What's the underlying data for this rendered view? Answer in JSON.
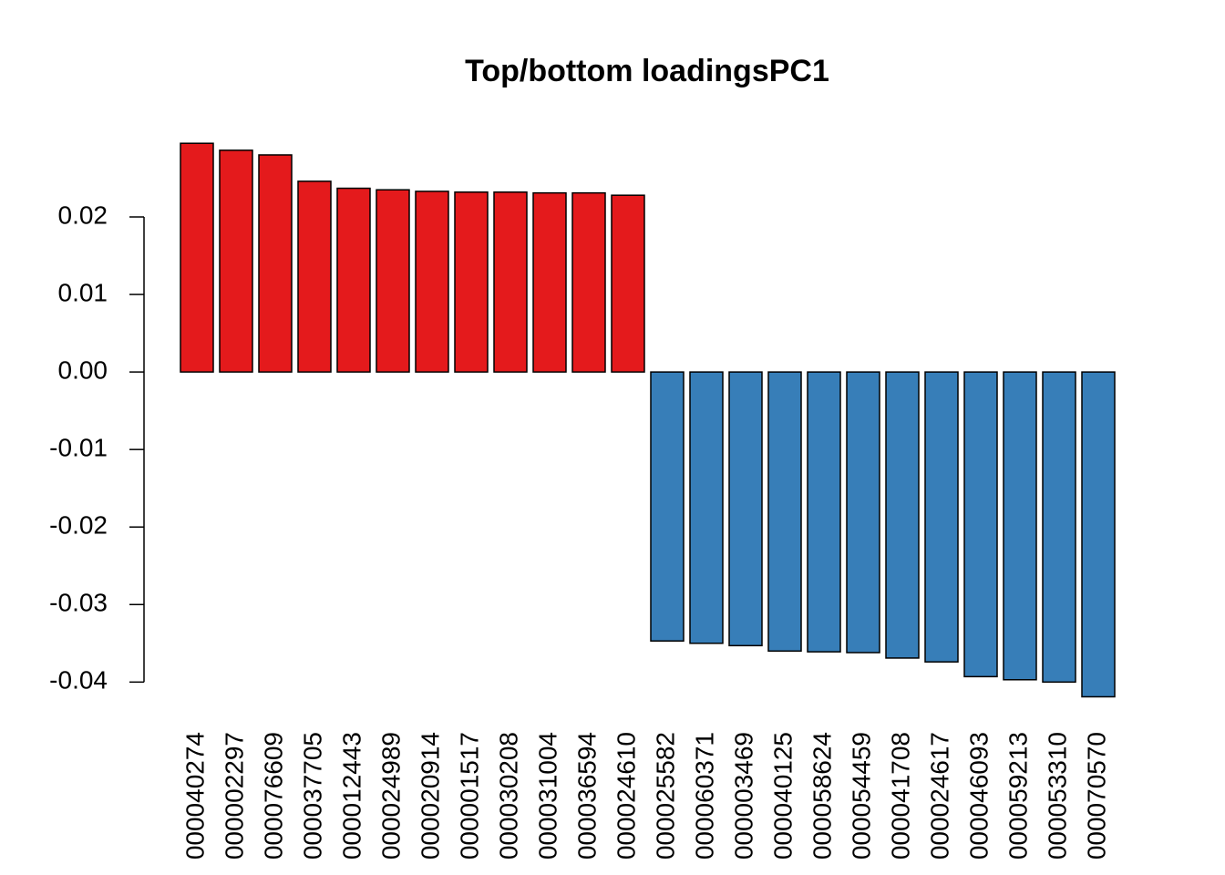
{
  "chart_data": {
    "type": "bar",
    "title": "Top/bottom loadingsPC1",
    "categories": [
      "000040274",
      "000002297",
      "000076609",
      "000037705",
      "000012443",
      "000024989",
      "000020914",
      "000001517",
      "000030208",
      "000031004",
      "000036594",
      "000024610",
      "000025582",
      "000060371",
      "000003469",
      "000040125",
      "000058624",
      "000054459",
      "000041708",
      "000024617",
      "000046093",
      "000059213",
      "000053310",
      "000070570"
    ],
    "values": [
      0.0295,
      0.0286,
      0.028,
      0.0246,
      0.0237,
      0.0235,
      0.0233,
      0.0232,
      0.0232,
      0.0231,
      0.0231,
      0.0228,
      -0.0347,
      -0.035,
      -0.0353,
      -0.036,
      -0.0361,
      -0.0362,
      -0.0369,
      -0.0374,
      -0.0393,
      -0.0397,
      -0.04,
      -0.0419
    ],
    "colors": [
      "#e41a1c",
      "#e41a1c",
      "#e41a1c",
      "#e41a1c",
      "#e41a1c",
      "#e41a1c",
      "#e41a1c",
      "#e41a1c",
      "#e41a1c",
      "#e41a1c",
      "#e41a1c",
      "#e41a1c",
      "#377eb8",
      "#377eb8",
      "#377eb8",
      "#377eb8",
      "#377eb8",
      "#377eb8",
      "#377eb8",
      "#377eb8",
      "#377eb8",
      "#377eb8",
      "#377eb8",
      "#377eb8"
    ],
    "ylim": [
      -0.0449,
      0.0327
    ],
    "yticks": [
      -0.04,
      -0.03,
      -0.02,
      -0.01,
      {
        "value": 0,
        "label": "0.00"
      },
      0.01,
      0.02
    ]
  }
}
